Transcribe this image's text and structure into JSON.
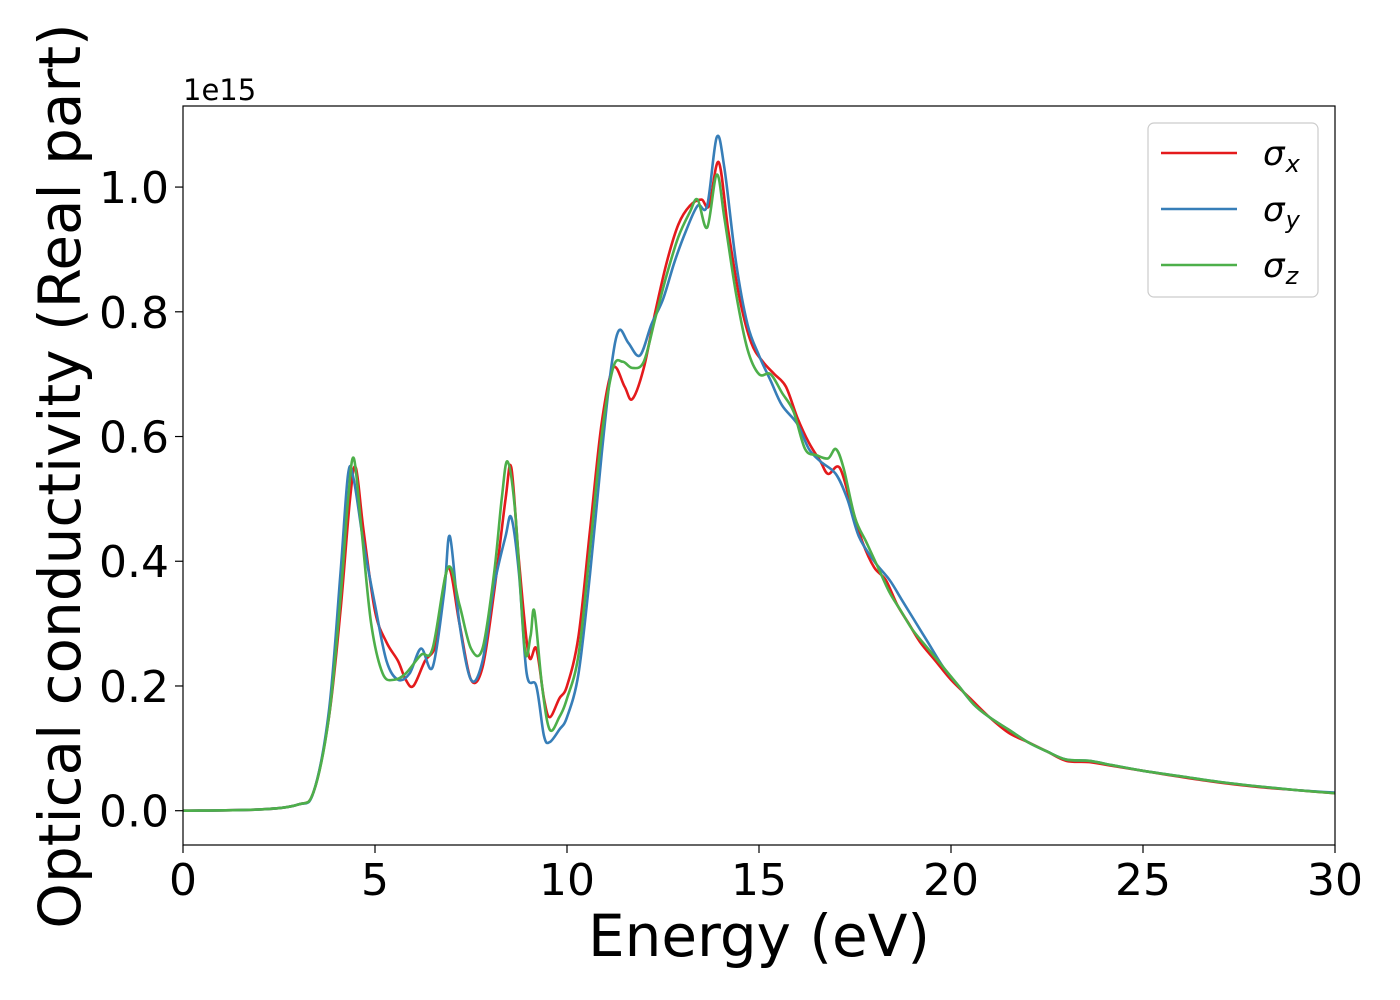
{
  "chart_data": {
    "type": "line",
    "xlabel": "Energy (eV)",
    "ylabel": "Optical conductivity (Real part)",
    "offset_text": "1e15",
    "xlim": [
      0,
      30
    ],
    "ylim": [
      -0.055,
      1.13
    ],
    "x_ticks": [
      0,
      5,
      10,
      15,
      20,
      25,
      30
    ],
    "y_ticks": [
      0.0,
      0.2,
      0.4,
      0.6,
      0.8,
      1.0
    ],
    "x_tick_labels": [
      "0",
      "5",
      "10",
      "15",
      "20",
      "25",
      "30"
    ],
    "y_tick_labels": [
      "0.0",
      "0.2",
      "0.4",
      "0.6",
      "0.8",
      "1.0"
    ],
    "legend_position": "top-right",
    "series": [
      {
        "name": "σ_x",
        "legend_base": "σ",
        "legend_sub": "x",
        "color": "#e41a1c",
        "points": [
          [
            0,
            0
          ],
          [
            2,
            0.002
          ],
          [
            3,
            0.01
          ],
          [
            3.4,
            0.03
          ],
          [
            3.8,
            0.15
          ],
          [
            4.1,
            0.32
          ],
          [
            4.35,
            0.5
          ],
          [
            4.5,
            0.55
          ],
          [
            4.7,
            0.45
          ],
          [
            5.0,
            0.32
          ],
          [
            5.3,
            0.27
          ],
          [
            5.6,
            0.24
          ],
          [
            5.8,
            0.21
          ],
          [
            6.0,
            0.2
          ],
          [
            6.3,
            0.24
          ],
          [
            6.6,
            0.27
          ],
          [
            6.9,
            0.39
          ],
          [
            7.2,
            0.3
          ],
          [
            7.5,
            0.21
          ],
          [
            7.8,
            0.23
          ],
          [
            8.1,
            0.35
          ],
          [
            8.4,
            0.5
          ],
          [
            8.55,
            0.55
          ],
          [
            8.75,
            0.4
          ],
          [
            9.0,
            0.25
          ],
          [
            9.2,
            0.26
          ],
          [
            9.4,
            0.18
          ],
          [
            9.55,
            0.15
          ],
          [
            9.8,
            0.18
          ],
          [
            10.0,
            0.2
          ],
          [
            10.3,
            0.28
          ],
          [
            10.6,
            0.45
          ],
          [
            10.9,
            0.62
          ],
          [
            11.2,
            0.71
          ],
          [
            11.5,
            0.68
          ],
          [
            11.7,
            0.66
          ],
          [
            12.0,
            0.71
          ],
          [
            12.3,
            0.8
          ],
          [
            12.6,
            0.88
          ],
          [
            12.9,
            0.94
          ],
          [
            13.2,
            0.97
          ],
          [
            13.5,
            0.98
          ],
          [
            13.7,
            0.97
          ],
          [
            13.95,
            1.04
          ],
          [
            14.2,
            0.93
          ],
          [
            14.5,
            0.82
          ],
          [
            14.8,
            0.75
          ],
          [
            15.1,
            0.72
          ],
          [
            15.4,
            0.7
          ],
          [
            15.7,
            0.68
          ],
          [
            16.0,
            0.63
          ],
          [
            16.3,
            0.59
          ],
          [
            16.6,
            0.56
          ],
          [
            16.8,
            0.54
          ],
          [
            17.1,
            0.55
          ],
          [
            17.4,
            0.49
          ],
          [
            17.7,
            0.43
          ],
          [
            18.0,
            0.39
          ],
          [
            18.3,
            0.37
          ],
          [
            18.6,
            0.33
          ],
          [
            18.9,
            0.3
          ],
          [
            19.2,
            0.27
          ],
          [
            19.6,
            0.24
          ],
          [
            20.0,
            0.21
          ],
          [
            20.5,
            0.18
          ],
          [
            21.0,
            0.15
          ],
          [
            21.5,
            0.125
          ],
          [
            22.0,
            0.11
          ],
          [
            22.5,
            0.095
          ],
          [
            23.0,
            0.08
          ],
          [
            23.6,
            0.078
          ],
          [
            24.2,
            0.072
          ],
          [
            25.0,
            0.064
          ],
          [
            26.0,
            0.054
          ],
          [
            27.0,
            0.045
          ],
          [
            28.0,
            0.038
          ],
          [
            29.0,
            0.033
          ],
          [
            30.0,
            0.028
          ]
        ]
      },
      {
        "name": "σ_y",
        "legend_base": "σ",
        "legend_sub": "y",
        "color": "#377eb8",
        "points": [
          [
            0,
            0
          ],
          [
            2,
            0.002
          ],
          [
            3,
            0.01
          ],
          [
            3.4,
            0.03
          ],
          [
            3.8,
            0.16
          ],
          [
            4.1,
            0.38
          ],
          [
            4.3,
            0.54
          ],
          [
            4.45,
            0.53
          ],
          [
            4.7,
            0.43
          ],
          [
            5.0,
            0.33
          ],
          [
            5.3,
            0.24
          ],
          [
            5.6,
            0.21
          ],
          [
            5.9,
            0.22
          ],
          [
            6.2,
            0.26
          ],
          [
            6.5,
            0.23
          ],
          [
            6.8,
            0.35
          ],
          [
            6.95,
            0.44
          ],
          [
            7.2,
            0.3
          ],
          [
            7.5,
            0.21
          ],
          [
            7.8,
            0.24
          ],
          [
            8.1,
            0.36
          ],
          [
            8.4,
            0.44
          ],
          [
            8.55,
            0.47
          ],
          [
            8.75,
            0.38
          ],
          [
            8.95,
            0.22
          ],
          [
            9.2,
            0.2
          ],
          [
            9.4,
            0.12
          ],
          [
            9.55,
            0.11
          ],
          [
            9.8,
            0.13
          ],
          [
            10.0,
            0.15
          ],
          [
            10.3,
            0.22
          ],
          [
            10.6,
            0.38
          ],
          [
            10.9,
            0.57
          ],
          [
            11.15,
            0.71
          ],
          [
            11.35,
            0.77
          ],
          [
            11.6,
            0.75
          ],
          [
            11.9,
            0.73
          ],
          [
            12.2,
            0.78
          ],
          [
            12.5,
            0.82
          ],
          [
            12.8,
            0.88
          ],
          [
            13.1,
            0.93
          ],
          [
            13.4,
            0.97
          ],
          [
            13.65,
            0.97
          ],
          [
            13.9,
            1.08
          ],
          [
            14.1,
            1.03
          ],
          [
            14.4,
            0.88
          ],
          [
            14.7,
            0.78
          ],
          [
            15.0,
            0.73
          ],
          [
            15.3,
            0.69
          ],
          [
            15.6,
            0.65
          ],
          [
            16.0,
            0.62
          ],
          [
            16.3,
            0.58
          ],
          [
            16.6,
            0.56
          ],
          [
            17.0,
            0.54
          ],
          [
            17.3,
            0.5
          ],
          [
            17.6,
            0.44
          ],
          [
            18.0,
            0.4
          ],
          [
            18.4,
            0.37
          ],
          [
            18.7,
            0.34
          ],
          [
            19.0,
            0.31
          ],
          [
            19.4,
            0.27
          ],
          [
            19.8,
            0.23
          ],
          [
            20.2,
            0.2
          ],
          [
            20.6,
            0.17
          ],
          [
            21.0,
            0.15
          ],
          [
            21.5,
            0.13
          ],
          [
            22.0,
            0.11
          ],
          [
            22.5,
            0.095
          ],
          [
            23.0,
            0.082
          ],
          [
            23.6,
            0.08
          ],
          [
            24.2,
            0.073
          ],
          [
            25.0,
            0.064
          ],
          [
            26.0,
            0.055
          ],
          [
            27.0,
            0.046
          ],
          [
            28.0,
            0.039
          ],
          [
            29.0,
            0.033
          ],
          [
            30.0,
            0.029
          ]
        ]
      },
      {
        "name": "σ_z",
        "legend_base": "σ",
        "legend_sub": "z",
        "color": "#4daf4a",
        "points": [
          [
            0,
            0
          ],
          [
            2,
            0.002
          ],
          [
            3,
            0.01
          ],
          [
            3.4,
            0.03
          ],
          [
            3.8,
            0.15
          ],
          [
            4.1,
            0.34
          ],
          [
            4.3,
            0.5
          ],
          [
            4.45,
            0.565
          ],
          [
            4.65,
            0.45
          ],
          [
            4.9,
            0.3
          ],
          [
            5.2,
            0.22
          ],
          [
            5.5,
            0.21
          ],
          [
            5.8,
            0.22
          ],
          [
            6.2,
            0.25
          ],
          [
            6.5,
            0.26
          ],
          [
            6.9,
            0.39
          ],
          [
            7.2,
            0.33
          ],
          [
            7.5,
            0.26
          ],
          [
            7.8,
            0.26
          ],
          [
            8.1,
            0.38
          ],
          [
            8.3,
            0.5
          ],
          [
            8.45,
            0.56
          ],
          [
            8.65,
            0.48
          ],
          [
            8.9,
            0.26
          ],
          [
            9.05,
            0.28
          ],
          [
            9.15,
            0.32
          ],
          [
            9.35,
            0.2
          ],
          [
            9.55,
            0.13
          ],
          [
            9.8,
            0.15
          ],
          [
            10.0,
            0.18
          ],
          [
            10.3,
            0.25
          ],
          [
            10.6,
            0.42
          ],
          [
            10.9,
            0.6
          ],
          [
            11.2,
            0.71
          ],
          [
            11.45,
            0.72
          ],
          [
            11.7,
            0.71
          ],
          [
            12.0,
            0.72
          ],
          [
            12.3,
            0.79
          ],
          [
            12.6,
            0.86
          ],
          [
            12.9,
            0.92
          ],
          [
            13.2,
            0.96
          ],
          [
            13.4,
            0.98
          ],
          [
            13.65,
            0.935
          ],
          [
            13.9,
            1.02
          ],
          [
            14.1,
            0.95
          ],
          [
            14.4,
            0.83
          ],
          [
            14.7,
            0.74
          ],
          [
            15.0,
            0.7
          ],
          [
            15.3,
            0.7
          ],
          [
            15.6,
            0.67
          ],
          [
            15.9,
            0.64
          ],
          [
            16.2,
            0.58
          ],
          [
            16.5,
            0.57
          ],
          [
            16.8,
            0.565
          ],
          [
            17.0,
            0.58
          ],
          [
            17.2,
            0.55
          ],
          [
            17.5,
            0.47
          ],
          [
            17.8,
            0.43
          ],
          [
            18.1,
            0.39
          ],
          [
            18.4,
            0.35
          ],
          [
            18.7,
            0.32
          ],
          [
            19.0,
            0.29
          ],
          [
            19.4,
            0.26
          ],
          [
            19.8,
            0.23
          ],
          [
            20.2,
            0.2
          ],
          [
            20.6,
            0.17
          ],
          [
            21.0,
            0.15
          ],
          [
            21.5,
            0.13
          ],
          [
            22.0,
            0.11
          ],
          [
            22.5,
            0.095
          ],
          [
            23.0,
            0.082
          ],
          [
            23.6,
            0.08
          ],
          [
            24.2,
            0.073
          ],
          [
            25.0,
            0.064
          ],
          [
            26.0,
            0.055
          ],
          [
            27.0,
            0.046
          ],
          [
            28.0,
            0.039
          ],
          [
            29.0,
            0.033
          ],
          [
            30.0,
            0.028
          ]
        ]
      }
    ]
  }
}
